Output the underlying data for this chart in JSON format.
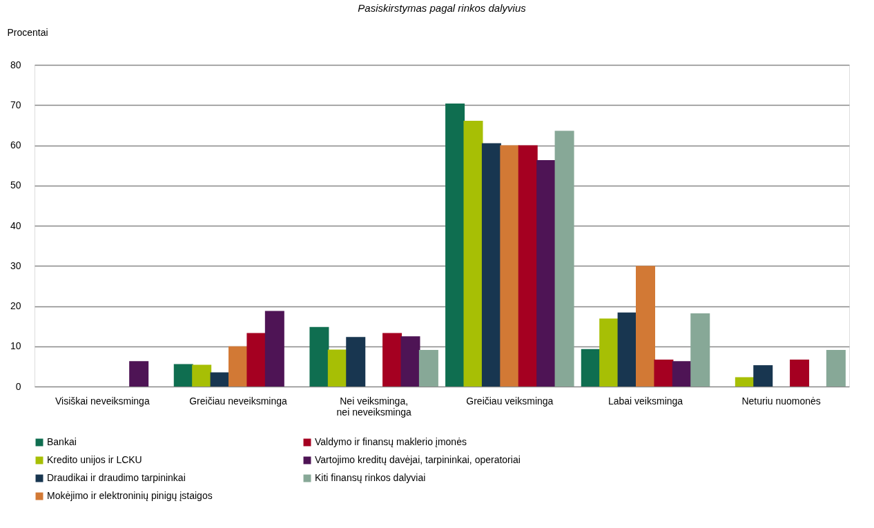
{
  "chart_data": {
    "type": "bar",
    "title": "Pasiskirstymas pagal rinkos dalyvius",
    "ylabel": "Procentai",
    "categories": [
      "Visiškai neveiksminga",
      "Greičiau neveiksminga",
      "Nei veiksminga, nei neveiksminga",
      "Greičiau veiksminga",
      "Labai veiksminga",
      "Neturiu nuomonės"
    ],
    "series": [
      {
        "name": "Bankai",
        "color": "#0f6e50",
        "values": [
          0,
          5.6,
          14.8,
          70.4,
          9.3,
          0
        ]
      },
      {
        "name": "Kredito unijos ir LCKU",
        "color": "#a7bf05",
        "values": [
          0,
          5.4,
          9.2,
          66.1,
          16.9,
          2.3
        ]
      },
      {
        "name": "Draudikai ir draudimo tarpininkai",
        "color": "#183650",
        "values": [
          0,
          3.5,
          12.3,
          60.5,
          18.4,
          5.3
        ]
      },
      {
        "name": "Mokėjimo ir elektroninių pinigų įstaigos",
        "color": "#d27935",
        "values": [
          0,
          10,
          0,
          60,
          30,
          0
        ]
      },
      {
        "name": "Valdymo ir finansų maklerio įmonės",
        "color": "#a50021",
        "values": [
          0,
          13.3,
          13.3,
          60,
          6.7,
          6.7
        ]
      },
      {
        "name": "Vartojimo kreditų davėjai, tarpininkai, operatoriai",
        "color": "#4e1455",
        "values": [
          6.3,
          18.8,
          12.5,
          56.3,
          6.3,
          0
        ]
      },
      {
        "name": "Kiti finansų rinkos dalyviai",
        "color": "#87a897",
        "values": [
          0,
          0,
          9.1,
          63.6,
          18.2,
          9.1
        ]
      }
    ],
    "ylim": [
      0,
      80
    ],
    "yticks": [
      0,
      10,
      20,
      30,
      40,
      50,
      60,
      70,
      80
    ],
    "grid": "y",
    "legend": "bottom"
  }
}
